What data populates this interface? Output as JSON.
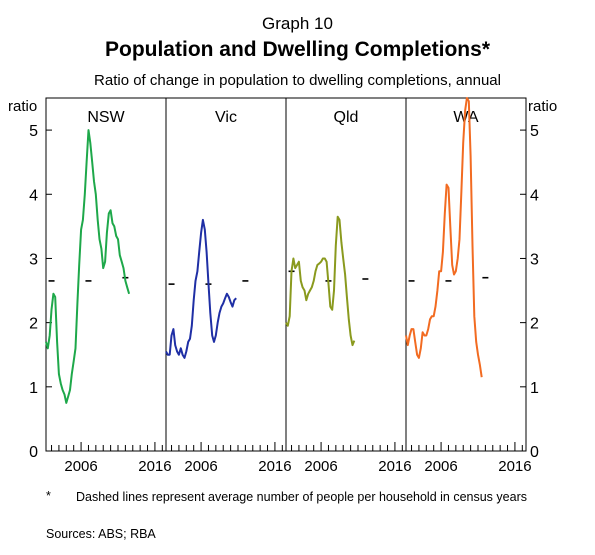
{
  "header": {
    "graph_number": "Graph 10",
    "title": "Population and Dwelling Completions*",
    "subtitle": "Ratio of change in population to dwelling completions, annual"
  },
  "footnote": {
    "marker": "*",
    "text": "Dashed lines represent average number of people per household in census years"
  },
  "sources": "Sources:   ABS; RBA",
  "chart_data": {
    "type": "line",
    "ylabel_left": "ratio",
    "ylabel_right": "ratio",
    "ylim": [
      0,
      5.5
    ],
    "yticks": [
      0,
      1,
      2,
      3,
      4,
      5
    ],
    "xlim": [
      2001.75,
      2018.0
    ],
    "xticks": [
      2006,
      2016
    ],
    "grid": false,
    "panels": [
      {
        "name": "NSW",
        "color": "#1ea84a",
        "household_marks": [
          [
            2002.5,
            2.65
          ],
          [
            2007.5,
            2.65
          ],
          [
            2012.5,
            2.7
          ]
        ],
        "points": [
          [
            2001.75,
            1.7
          ],
          [
            2002.0,
            1.6
          ],
          [
            2002.25,
            1.8
          ],
          [
            2002.5,
            2.2
          ],
          [
            2002.75,
            2.45
          ],
          [
            2003.0,
            2.4
          ],
          [
            2003.25,
            1.7
          ],
          [
            2003.5,
            1.2
          ],
          [
            2003.75,
            1.05
          ],
          [
            2004.0,
            0.95
          ],
          [
            2004.25,
            0.88
          ],
          [
            2004.5,
            0.75
          ],
          [
            2004.75,
            0.85
          ],
          [
            2005.0,
            0.95
          ],
          [
            2005.25,
            1.2
          ],
          [
            2005.5,
            1.4
          ],
          [
            2005.75,
            1.6
          ],
          [
            2006.0,
            2.3
          ],
          [
            2006.25,
            2.9
          ],
          [
            2006.5,
            3.45
          ],
          [
            2006.75,
            3.6
          ],
          [
            2007.0,
            4.0
          ],
          [
            2007.25,
            4.5
          ],
          [
            2007.5,
            5.0
          ],
          [
            2007.75,
            4.8
          ],
          [
            2008.0,
            4.5
          ],
          [
            2008.25,
            4.2
          ],
          [
            2008.5,
            4.0
          ],
          [
            2008.75,
            3.6
          ],
          [
            2009.0,
            3.3
          ],
          [
            2009.25,
            3.15
          ],
          [
            2009.5,
            2.85
          ],
          [
            2009.75,
            2.95
          ],
          [
            2010.0,
            3.4
          ],
          [
            2010.25,
            3.7
          ],
          [
            2010.5,
            3.75
          ],
          [
            2010.75,
            3.55
          ],
          [
            2011.0,
            3.5
          ],
          [
            2011.25,
            3.35
          ],
          [
            2011.5,
            3.3
          ],
          [
            2011.75,
            3.05
          ],
          [
            2012.0,
            2.95
          ],
          [
            2012.25,
            2.85
          ],
          [
            2012.5,
            2.65
          ],
          [
            2012.75,
            2.55
          ],
          [
            2013.0,
            2.45
          ]
        ]
      },
      {
        "name": "Vic",
        "color": "#1f2fa5",
        "household_marks": [
          [
            2002.5,
            2.6
          ],
          [
            2007.5,
            2.6
          ],
          [
            2012.5,
            2.65
          ]
        ],
        "points": [
          [
            2001.75,
            1.55
          ],
          [
            2002.0,
            1.5
          ],
          [
            2002.25,
            1.5
          ],
          [
            2002.5,
            1.8
          ],
          [
            2002.75,
            1.9
          ],
          [
            2003.0,
            1.65
          ],
          [
            2003.25,
            1.55
          ],
          [
            2003.5,
            1.5
          ],
          [
            2003.75,
            1.6
          ],
          [
            2004.0,
            1.5
          ],
          [
            2004.25,
            1.45
          ],
          [
            2004.5,
            1.55
          ],
          [
            2004.75,
            1.7
          ],
          [
            2005.0,
            1.75
          ],
          [
            2005.25,
            1.95
          ],
          [
            2005.5,
            2.35
          ],
          [
            2005.75,
            2.65
          ],
          [
            2006.0,
            2.8
          ],
          [
            2006.25,
            3.1
          ],
          [
            2006.5,
            3.4
          ],
          [
            2006.75,
            3.6
          ],
          [
            2007.0,
            3.45
          ],
          [
            2007.25,
            3.1
          ],
          [
            2007.5,
            2.6
          ],
          [
            2007.75,
            2.15
          ],
          [
            2008.0,
            1.8
          ],
          [
            2008.25,
            1.7
          ],
          [
            2008.5,
            1.8
          ],
          [
            2008.75,
            2.0
          ],
          [
            2009.0,
            2.15
          ],
          [
            2009.25,
            2.25
          ],
          [
            2009.5,
            2.3
          ],
          [
            2009.75,
            2.38
          ],
          [
            2010.0,
            2.45
          ],
          [
            2010.25,
            2.4
          ],
          [
            2010.5,
            2.32
          ],
          [
            2010.75,
            2.25
          ],
          [
            2011.0,
            2.35
          ],
          [
            2011.25,
            2.38
          ]
        ]
      },
      {
        "name": "Qld",
        "color": "#8a9a1e",
        "household_marks": [
          [
            2002.5,
            2.8
          ],
          [
            2007.5,
            2.65
          ],
          [
            2012.5,
            2.68
          ]
        ],
        "points": [
          [
            2001.75,
            2.0
          ],
          [
            2002.0,
            1.95
          ],
          [
            2002.25,
            2.1
          ],
          [
            2002.5,
            2.8
          ],
          [
            2002.75,
            3.0
          ],
          [
            2003.0,
            2.85
          ],
          [
            2003.25,
            2.9
          ],
          [
            2003.5,
            2.95
          ],
          [
            2003.75,
            2.65
          ],
          [
            2004.0,
            2.55
          ],
          [
            2004.25,
            2.5
          ],
          [
            2004.5,
            2.35
          ],
          [
            2004.75,
            2.45
          ],
          [
            2005.0,
            2.5
          ],
          [
            2005.25,
            2.55
          ],
          [
            2005.5,
            2.65
          ],
          [
            2005.75,
            2.8
          ],
          [
            2006.0,
            2.9
          ],
          [
            2006.25,
            2.92
          ],
          [
            2006.5,
            2.95
          ],
          [
            2006.75,
            3.0
          ],
          [
            2007.0,
            3.0
          ],
          [
            2007.25,
            2.95
          ],
          [
            2007.5,
            2.6
          ],
          [
            2007.75,
            2.25
          ],
          [
            2008.0,
            2.2
          ],
          [
            2008.25,
            2.5
          ],
          [
            2008.5,
            3.2
          ],
          [
            2008.75,
            3.65
          ],
          [
            2009.0,
            3.6
          ],
          [
            2009.25,
            3.25
          ],
          [
            2009.5,
            3.0
          ],
          [
            2009.75,
            2.75
          ],
          [
            2010.0,
            2.4
          ],
          [
            2010.25,
            2.05
          ],
          [
            2010.5,
            1.8
          ],
          [
            2010.75,
            1.65
          ],
          [
            2011.0,
            1.72
          ]
        ]
      },
      {
        "name": "WA",
        "color": "#f26b21",
        "household_marks": [
          [
            2002.5,
            2.65
          ],
          [
            2007.5,
            2.65
          ],
          [
            2012.5,
            2.7
          ]
        ],
        "points": [
          [
            2001.75,
            1.8
          ],
          [
            2002.0,
            1.65
          ],
          [
            2002.25,
            1.8
          ],
          [
            2002.5,
            1.9
          ],
          [
            2002.75,
            1.9
          ],
          [
            2003.0,
            1.7
          ],
          [
            2003.25,
            1.5
          ],
          [
            2003.5,
            1.45
          ],
          [
            2003.75,
            1.6
          ],
          [
            2004.0,
            1.85
          ],
          [
            2004.25,
            1.8
          ],
          [
            2004.5,
            1.8
          ],
          [
            2004.75,
            1.9
          ],
          [
            2005.0,
            2.05
          ],
          [
            2005.25,
            2.1
          ],
          [
            2005.5,
            2.1
          ],
          [
            2005.75,
            2.25
          ],
          [
            2006.0,
            2.5
          ],
          [
            2006.25,
            2.8
          ],
          [
            2006.5,
            2.8
          ],
          [
            2006.75,
            3.1
          ],
          [
            2007.0,
            3.7
          ],
          [
            2007.25,
            4.15
          ],
          [
            2007.5,
            4.1
          ],
          [
            2007.75,
            3.5
          ],
          [
            2008.0,
            2.9
          ],
          [
            2008.25,
            2.75
          ],
          [
            2008.5,
            2.8
          ],
          [
            2008.75,
            3.0
          ],
          [
            2009.0,
            3.3
          ],
          [
            2009.25,
            4.05
          ],
          [
            2009.5,
            4.8
          ],
          [
            2009.75,
            5.3
          ],
          [
            2010.0,
            5.5
          ],
          [
            2010.25,
            5.45
          ],
          [
            2010.5,
            4.6
          ],
          [
            2010.75,
            3.2
          ],
          [
            2011.0,
            2.1
          ],
          [
            2011.25,
            1.7
          ],
          [
            2011.5,
            1.5
          ],
          [
            2011.75,
            1.35
          ],
          [
            2012.0,
            1.15
          ]
        ]
      }
    ]
  }
}
